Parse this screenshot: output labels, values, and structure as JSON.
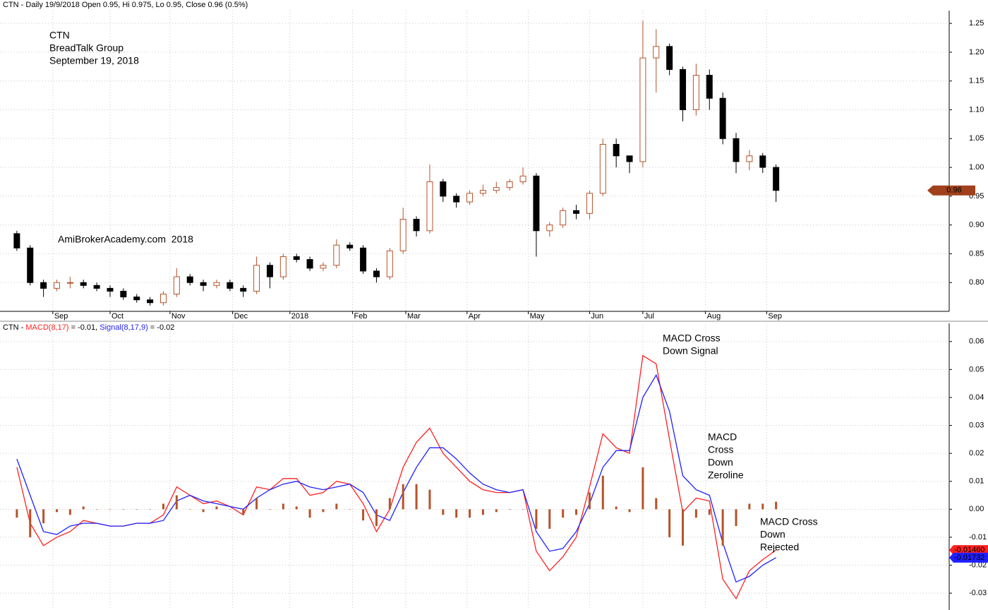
{
  "chart_data": [
    {
      "type": "candlestick",
      "title": "CTN - Daily 19/9/2018 Open 0.95, Hi 0.975, Lo 0.95, Close 0.96 (0.5%)",
      "annotations": [
        [
          "CTN",
          "BreadTalk Group",
          "September 19, 2018"
        ],
        [
          "AmiBrokerAcademy.com  2018"
        ]
      ],
      "annotation_color": "#ff3b3b",
      "open": [
        0.885,
        0.86,
        0.8,
        0.79,
        0.8,
        0.8,
        0.795,
        0.79,
        0.785,
        0.775,
        0.77,
        0.765,
        0.78,
        0.81,
        0.8,
        0.795,
        0.8,
        0.79,
        0.785,
        0.83,
        0.81,
        0.845,
        0.84,
        0.825,
        0.83,
        0.865,
        0.86,
        0.82,
        0.81,
        0.855,
        0.91,
        0.89,
        0.975,
        0.95,
        0.94,
        0.955,
        0.96,
        0.965,
        0.975,
        0.985,
        0.89,
        0.9,
        0.925,
        0.92,
        0.955,
        1.04,
        1.02,
        1.01,
        1.19,
        1.21,
        1.17,
        1.1,
        1.16,
        1.12,
        1.05,
        1.01,
        1.02,
        1.0
      ],
      "high": [
        0.89,
        0.865,
        0.805,
        0.805,
        0.81,
        0.805,
        0.8,
        0.795,
        0.79,
        0.78,
        0.775,
        0.785,
        0.825,
        0.815,
        0.805,
        0.805,
        0.805,
        0.795,
        0.845,
        0.835,
        0.85,
        0.85,
        0.845,
        0.835,
        0.875,
        0.87,
        0.865,
        0.825,
        0.86,
        0.93,
        0.915,
        1.005,
        0.98,
        0.955,
        0.96,
        0.97,
        0.975,
        0.98,
        1.0,
        0.99,
        0.905,
        0.93,
        0.935,
        0.96,
        1.05,
        1.05,
        1.02,
        1.255,
        1.24,
        1.215,
        1.175,
        1.18,
        1.17,
        1.13,
        1.06,
        1.03,
        1.025,
        1.005
      ],
      "low": [
        0.855,
        0.795,
        0.775,
        0.785,
        0.79,
        0.79,
        0.785,
        0.775,
        0.77,
        0.765,
        0.76,
        0.76,
        0.775,
        0.795,
        0.785,
        0.79,
        0.785,
        0.775,
        0.78,
        0.79,
        0.805,
        0.835,
        0.82,
        0.82,
        0.825,
        0.855,
        0.815,
        0.8,
        0.805,
        0.85,
        0.88,
        0.885,
        0.94,
        0.93,
        0.935,
        0.95,
        0.955,
        0.96,
        0.97,
        0.845,
        0.88,
        0.895,
        0.91,
        0.91,
        0.95,
        1.0,
        0.99,
        1.0,
        1.13,
        1.16,
        1.08,
        1.09,
        1.1,
        1.04,
        0.99,
        0.995,
        0.99,
        0.94
      ],
      "close": [
        0.86,
        0.8,
        0.79,
        0.8,
        0.8,
        0.795,
        0.79,
        0.785,
        0.775,
        0.77,
        0.765,
        0.78,
        0.81,
        0.8,
        0.795,
        0.8,
        0.79,
        0.785,
        0.83,
        0.81,
        0.845,
        0.84,
        0.825,
        0.83,
        0.865,
        0.86,
        0.82,
        0.81,
        0.855,
        0.91,
        0.89,
        0.975,
        0.95,
        0.94,
        0.955,
        0.96,
        0.965,
        0.975,
        0.985,
        0.89,
        0.9,
        0.925,
        0.92,
        0.955,
        1.04,
        1.02,
        1.01,
        1.19,
        1.21,
        1.17,
        1.1,
        1.16,
        1.12,
        1.05,
        1.01,
        1.02,
        1.0,
        0.96
      ],
      "up_color": "#b5532a",
      "down_color": "#000000",
      "last_color": "#a0401c",
      "xlim": [
        -1,
        70
      ],
      "xticks": [
        {
          "value": 2.7,
          "label": "Sep"
        },
        {
          "value": 7.0,
          "label": "Oct"
        },
        {
          "value": 11.5,
          "label": "Nov"
        },
        {
          "value": 16.2,
          "label": "Dec"
        },
        {
          "value": 20.5,
          "label": "2018"
        },
        {
          "value": 25.2,
          "label": "Feb"
        },
        {
          "value": 29.2,
          "label": "Mar"
        },
        {
          "value": 33.8,
          "label": "Apr"
        },
        {
          "value": 38.4,
          "label": "May"
        },
        {
          "value": 43.0,
          "label": "Jun"
        },
        {
          "value": 47.0,
          "label": "Jul"
        },
        {
          "value": 51.7,
          "label": "Aug"
        },
        {
          "value": 56.3,
          "label": "Sep"
        }
      ],
      "ylim": [
        0.75,
        1.26
      ],
      "yticks": [
        {
          "value": 0.8,
          "label": "0.80"
        },
        0.85,
        {
          "value": 0.9,
          "label": "0.90"
        },
        0.95,
        {
          "value": 1.0,
          "label": "1.00"
        },
        1.05,
        {
          "value": 1.1,
          "label": "1.10"
        },
        1.15,
        {
          "value": 1.2,
          "label": "1.20"
        },
        1.25
      ],
      "grid": true
    },
    {
      "type": "macd",
      "title_prefix": "CTN - ",
      "macd_readout": " = -0.01, ",
      "signal_readout": " = -0.02",
      "annotations": [
        [
          "MACD Cross",
          "Down Signal"
        ],
        [
          "MACD",
          "Cross",
          "Down",
          "Zeroline"
        ],
        [
          "MACD Cross",
          "Down",
          "Rejected"
        ]
      ],
      "annotation_color": "#ff3b3b",
      "series": [
        {
          "name": "MACD(8,17)",
          "color": "#ff2020",
          "values": [
            0.015,
            -0.005,
            -0.013,
            -0.01,
            -0.008,
            -0.004,
            -0.005,
            -0.006,
            -0.006,
            -0.005,
            -0.005,
            -0.002,
            0.008,
            0.005,
            0.002,
            0.003,
            0.001,
            -0.002,
            0.008,
            0.007,
            0.011,
            0.011,
            0.005,
            0.006,
            0.01,
            0.009,
            0.002,
            -0.008,
            0.0,
            0.015,
            0.024,
            0.029,
            0.02,
            0.015,
            0.01,
            0.007,
            0.006,
            0.006,
            0.007,
            -0.015,
            -0.022,
            -0.017,
            -0.01,
            0.008,
            0.027,
            0.022,
            0.02,
            0.055,
            0.052,
            0.025,
            -0.001,
            0.004,
            0.003,
            -0.025,
            -0.032,
            -0.022,
            -0.018,
            -0.0146
          ],
          "value_labels": [
            null,
            null,
            null,
            null,
            null,
            null,
            null,
            null,
            null,
            null,
            null,
            null,
            null,
            null,
            null,
            null,
            null,
            null,
            null,
            null,
            null,
            null,
            null,
            null,
            null,
            null,
            null,
            null,
            null,
            null,
            null,
            null,
            null,
            null,
            null,
            null,
            null,
            null,
            null,
            null,
            null,
            null,
            null,
            null,
            null,
            null,
            null,
            null,
            null,
            null,
            null,
            null,
            null,
            null,
            null,
            null,
            null,
            "-0.01460"
          ]
        },
        {
          "name": "Signal(8,17,9)",
          "color": "#2020ff",
          "values": [
            0.018,
            0.005,
            -0.008,
            -0.009,
            -0.006,
            -0.005,
            -0.005,
            -0.006,
            -0.006,
            -0.005,
            -0.005,
            -0.004,
            0.003,
            0.005,
            0.003,
            0.002,
            0.001,
            0.0,
            0.004,
            0.007,
            0.009,
            0.01,
            0.008,
            0.007,
            0.008,
            0.009,
            0.006,
            -0.002,
            -0.004,
            0.006,
            0.015,
            0.022,
            0.022,
            0.018,
            0.013,
            0.009,
            0.007,
            0.006,
            0.007,
            -0.008,
            -0.015,
            -0.014,
            -0.008,
            0.002,
            0.015,
            0.021,
            0.021,
            0.04,
            0.048,
            0.035,
            0.012,
            0.007,
            0.005,
            -0.012,
            -0.026,
            -0.024,
            -0.02,
            -0.01732
          ],
          "value_labels": [
            null,
            null,
            null,
            null,
            null,
            null,
            null,
            null,
            null,
            null,
            null,
            null,
            null,
            null,
            null,
            null,
            null,
            null,
            null,
            null,
            null,
            null,
            null,
            null,
            null,
            null,
            null,
            null,
            null,
            null,
            null,
            null,
            null,
            null,
            null,
            null,
            null,
            null,
            null,
            null,
            null,
            null,
            null,
            null,
            null,
            null,
            null,
            null,
            null,
            null,
            null,
            null,
            null,
            null,
            null,
            null,
            null,
            "-0.01732"
          ]
        },
        {
          "color": "#b5532a",
          "kind": "histogram",
          "values": [
            -0.003,
            -0.01,
            -0.005,
            -0.001,
            -0.002,
            0.001,
            0,
            0,
            0,
            0,
            0,
            0.002,
            0.005,
            0,
            -0.001,
            0.001,
            0,
            -0.002,
            0.004,
            0,
            0.002,
            0.001,
            -0.003,
            -0.001,
            0.002,
            0,
            -0.004,
            -0.006,
            0.004,
            0.009,
            0.009,
            0.007,
            -0.002,
            -0.003,
            -0.003,
            -0.002,
            -0.001,
            0,
            0,
            -0.007,
            -0.007,
            -0.003,
            -0.002,
            0.006,
            0.012,
            0.001,
            -0.001,
            0.015,
            0.004,
            -0.01,
            -0.013,
            -0.003,
            -0.002,
            -0.013,
            -0.006,
            0.002,
            0.002,
            0.0027
          ]
        }
      ],
      "xlim": [
        -1,
        70
      ],
      "ylim": [
        -0.033,
        0.066
      ],
      "yticks": [
        -0.03,
        -0.02,
        -0.01,
        {
          "value": 0,
          "label": "0.00"
        },
        0.01,
        0.02,
        0.03,
        0.04,
        0.05,
        0.06
      ],
      "grid": true
    }
  ]
}
